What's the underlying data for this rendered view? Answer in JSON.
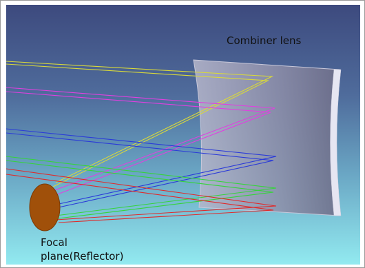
{
  "labels": {
    "combiner": "Combiner lens",
    "focal_line1": "Focal",
    "focal_line2": "plane(Reflector)"
  },
  "colors": {
    "sky_top": "#3d4a7e",
    "sky_mid": "#5a8bb0",
    "sky_bottom": "#8fe6ee",
    "lens_face": "#a9a9c2",
    "lens_edge": "#e8e8f4",
    "reflector": "#a0500a",
    "ray_yellow": "#d9d93a",
    "ray_magenta": "#e040e0",
    "ray_blue": "#2a3ad8",
    "ray_green": "#35d43a",
    "ray_red": "#e02a2a"
  }
}
